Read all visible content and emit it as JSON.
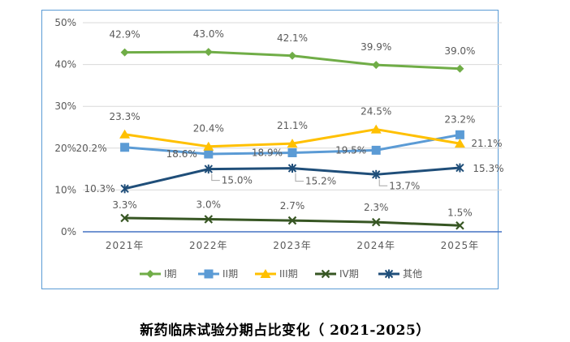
{
  "caption": "新药临床试验分期占比变化（ 2021-2025）",
  "chart_data": {
    "type": "line",
    "title": "",
    "xlabel": "",
    "ylabel": "",
    "categories": [
      "2021年",
      "2022年",
      "2023年",
      "2024年",
      "2025年"
    ],
    "ylim": [
      0,
      50
    ],
    "y_ticks": [
      "0%",
      "10%",
      "20%",
      "30%",
      "40%",
      "50%"
    ],
    "grid": "horizontal",
    "legend_position": "bottom",
    "series": [
      {
        "name": "I期",
        "color": "#70ad47",
        "marker": "diamond",
        "values": [
          42.9,
          43.0,
          42.1,
          39.9,
          39.0
        ],
        "labels": [
          "42.9%",
          "43.0%",
          "42.1%",
          "39.9%",
          "39.0%"
        ]
      },
      {
        "name": "II期",
        "color": "#5b9bd5",
        "marker": "square",
        "values": [
          20.2,
          18.6,
          18.9,
          19.5,
          23.2
        ],
        "labels": [
          "20.2%",
          "18.6%",
          "18.9%",
          "19.5%",
          "23.2%"
        ]
      },
      {
        "name": "III期",
        "color": "#ffc000",
        "marker": "triangle",
        "values": [
          23.3,
          20.4,
          21.1,
          24.5,
          21.1
        ],
        "labels": [
          "23.3%",
          "20.4%",
          "21.1%",
          "24.5%",
          "21.1%"
        ]
      },
      {
        "name": "IV期",
        "color": "#375623",
        "marker": "x",
        "values": [
          3.3,
          3.0,
          2.7,
          2.3,
          1.5
        ],
        "labels": [
          "3.3%",
          "3.0%",
          "2.7%",
          "2.3%",
          "1.5%"
        ]
      },
      {
        "name": "其他",
        "color": "#1f4e79",
        "marker": "star",
        "values": [
          10.3,
          15.0,
          15.2,
          13.7,
          15.3
        ],
        "labels": [
          "10.3%",
          "15.0%",
          "15.2%",
          "13.7%",
          "15.3%"
        ]
      }
    ]
  }
}
